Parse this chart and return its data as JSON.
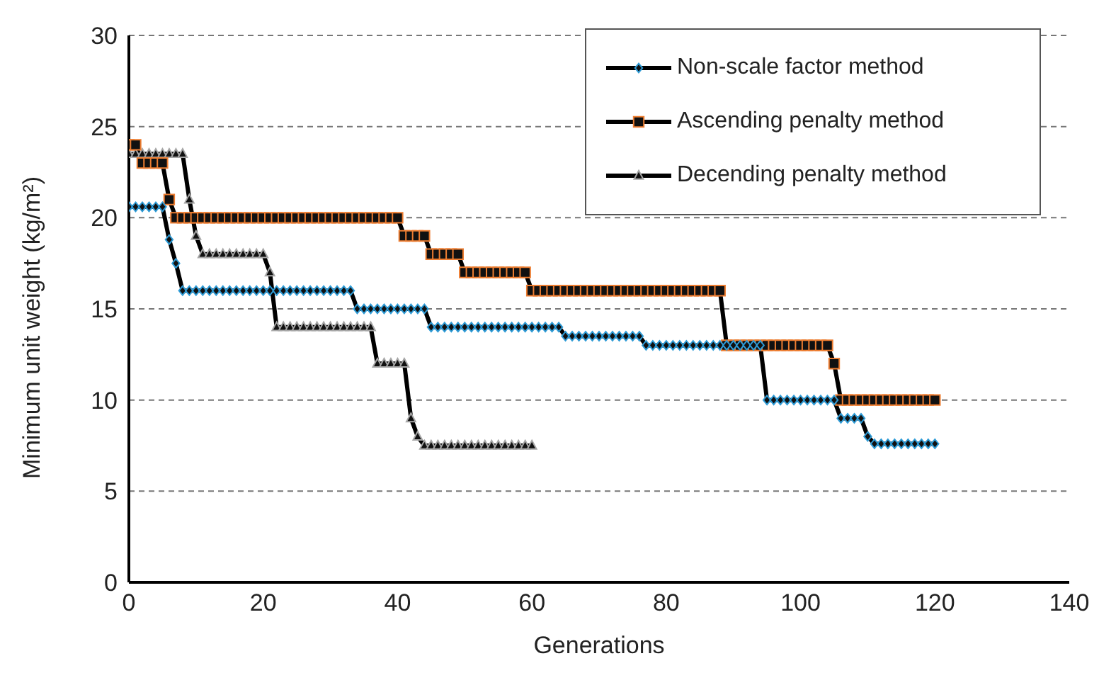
{
  "chart_data": {
    "type": "line",
    "xlabel": "Generations",
    "ylabel": "Minimum unit weight (kg/m²)",
    "x": [
      0,
      1,
      2,
      3,
      4,
      5,
      6,
      7,
      8,
      9,
      10,
      11,
      12,
      13,
      14,
      15,
      16,
      17,
      18,
      19,
      20,
      21,
      22,
      23,
      24,
      25,
      26,
      27,
      28,
      29,
      30,
      31,
      32,
      33,
      34,
      35,
      36,
      37,
      38,
      39,
      40,
      41,
      42,
      43,
      44,
      45,
      46,
      47,
      48,
      49,
      50,
      51,
      52,
      53,
      54,
      55,
      56,
      57,
      58,
      59,
      60,
      61,
      62,
      63,
      64,
      65,
      66,
      67,
      68,
      69,
      70,
      71,
      72,
      73,
      74,
      75,
      76,
      77,
      78,
      79,
      80,
      81,
      82,
      83,
      84,
      85,
      86,
      87,
      88,
      89,
      90,
      91,
      92,
      93,
      94,
      95,
      96,
      97,
      98,
      99,
      100,
      101,
      102,
      103,
      104,
      105,
      106,
      107,
      108,
      109,
      110,
      111,
      112,
      113,
      114,
      115,
      116,
      117,
      118,
      119,
      120
    ],
    "series": [
      {
        "name": "Non-scale factor method",
        "color": "#2e9bd6",
        "marker": "diamond",
        "values": [
          20.6,
          20.6,
          20.6,
          20.6,
          20.6,
          20.6,
          18.8,
          17.5,
          16,
          16,
          16,
          16,
          16,
          16,
          16,
          16,
          16,
          16,
          16,
          16,
          16,
          16,
          16,
          16,
          16,
          16,
          16,
          16,
          16,
          16,
          16,
          16,
          16,
          16,
          15,
          15,
          15,
          15,
          15,
          15,
          15,
          15,
          15,
          15,
          15,
          14,
          14,
          14,
          14,
          14,
          14,
          14,
          14,
          14,
          14,
          14,
          14,
          14,
          14,
          14,
          14,
          14,
          14,
          14,
          14,
          13.5,
          13.5,
          13.5,
          13.5,
          13.5,
          13.5,
          13.5,
          13.5,
          13.5,
          13.5,
          13.5,
          13.5,
          13,
          13,
          13,
          13,
          13,
          13,
          13,
          13,
          13,
          13,
          13,
          13,
          13,
          13,
          13,
          13,
          13,
          13,
          10,
          10,
          10,
          10,
          10,
          10,
          10,
          10,
          10,
          10,
          10,
          9,
          9,
          9,
          9,
          8,
          7.6,
          7.6,
          7.6,
          7.6,
          7.6,
          7.6,
          7.6,
          7.6,
          7.6,
          7.6
        ]
      },
      {
        "name": "Ascending penalty method",
        "color": "#ed7d31",
        "marker": "square",
        "values": [
          24,
          24,
          23,
          23,
          23,
          23,
          21,
          20,
          20,
          20,
          20,
          20,
          20,
          20,
          20,
          20,
          20,
          20,
          20,
          20,
          20,
          20,
          20,
          20,
          20,
          20,
          20,
          20,
          20,
          20,
          20,
          20,
          20,
          20,
          20,
          20,
          20,
          20,
          20,
          20,
          20,
          19,
          19,
          19,
          19,
          18,
          18,
          18,
          18,
          18,
          17,
          17,
          17,
          17,
          17,
          17,
          17,
          17,
          17,
          17,
          16,
          16,
          16,
          16,
          16,
          16,
          16,
          16,
          16,
          16,
          16,
          16,
          16,
          16,
          16,
          16,
          16,
          16,
          16,
          16,
          16,
          16,
          16,
          16,
          16,
          16,
          16,
          16,
          16,
          13,
          13,
          13,
          13,
          13,
          13,
          13,
          13,
          13,
          13,
          13,
          13,
          13,
          13,
          13,
          13,
          12,
          10,
          10,
          10,
          10,
          10,
          10,
          10,
          10,
          10,
          10,
          10,
          10,
          10,
          10,
          10
        ]
      },
      {
        "name": "Decending penalty method",
        "color": "#a6a6a6",
        "marker": "triangle",
        "x": [
          0,
          1,
          2,
          3,
          4,
          5,
          6,
          7,
          8,
          9,
          10,
          11,
          12,
          13,
          14,
          15,
          16,
          17,
          18,
          19,
          20,
          21,
          22,
          23,
          24,
          25,
          26,
          27,
          28,
          29,
          30,
          31,
          32,
          33,
          34,
          35,
          36,
          37,
          38,
          39,
          40,
          41,
          42,
          43,
          44,
          45,
          46,
          47,
          48,
          49,
          50,
          51,
          52,
          53,
          54,
          55,
          56,
          57,
          58,
          59,
          60
        ],
        "values": [
          23.5,
          23.5,
          23.5,
          23.5,
          23.5,
          23.5,
          23.5,
          23.5,
          23.5,
          21,
          19,
          18,
          18,
          18,
          18,
          18,
          18,
          18,
          18,
          18,
          18,
          17,
          14,
          14,
          14,
          14,
          14,
          14,
          14,
          14,
          14,
          14,
          14,
          14,
          14,
          14,
          14,
          12,
          12,
          12,
          12,
          12,
          9,
          8,
          7.5,
          7.5,
          7.5,
          7.5,
          7.5,
          7.5,
          7.5,
          7.5,
          7.5,
          7.5,
          7.5,
          7.5,
          7.5,
          7.5,
          7.5,
          7.5,
          7.5
        ]
      }
    ],
    "xlim": [
      0,
      140
    ],
    "xticks": [
      0,
      20,
      40,
      60,
      80,
      100,
      120,
      140
    ],
    "ylim": [
      0,
      30
    ],
    "yticks": [
      0,
      5,
      10,
      15,
      20,
      25,
      30
    ],
    "grid": "y",
    "legend": "top right",
    "line_style": "solid"
  }
}
